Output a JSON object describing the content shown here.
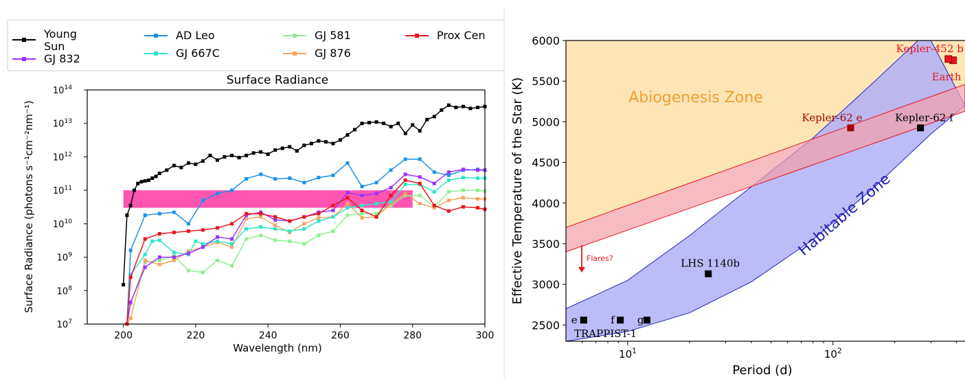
{
  "chart_data": [
    {
      "type": "line",
      "title": "Surface Radiance",
      "xlabel": "Wavelength (nm)",
      "ylabel": "Surface Radiance (photons s⁻¹cm⁻²nm⁻¹)",
      "xlim": [
        190,
        300
      ],
      "ylim_log10": [
        7,
        14
      ],
      "yscale": "log",
      "xticks": [
        "200",
        "220",
        "240",
        "260",
        "280",
        "300"
      ],
      "yticks": [
        {
          "base": "10",
          "exp": "7"
        },
        {
          "base": "10",
          "exp": "8"
        },
        {
          "base": "10",
          "exp": "9"
        },
        {
          "base": "10",
          "exp": "10"
        },
        {
          "base": "10",
          "exp": "11"
        },
        {
          "base": "10",
          "exp": "12"
        },
        {
          "base": "10",
          "exp": "13"
        },
        {
          "base": "10",
          "exp": "14"
        }
      ],
      "legend": {
        "placement": "top",
        "entries": [
          {
            "lines": [
              "Young",
              "Sun"
            ],
            "color": "#000000"
          },
          {
            "lines": [
              "GJ 832"
            ],
            "color": "#9b30ff"
          },
          {
            "lines": [
              "AD Leo"
            ],
            "color": "#1e90e8"
          },
          {
            "lines": [
              "GJ 667C"
            ],
            "color": "#2ee6c8"
          },
          {
            "lines": [
              "GJ 581"
            ],
            "color": "#90ee90"
          },
          {
            "lines": [
              "GJ 876"
            ],
            "color": "#f4a460"
          },
          {
            "lines": [
              "Prox Cen"
            ],
            "color": "#e8141c"
          }
        ]
      },
      "highlight_band": {
        "x": [
          200,
          280
        ],
        "y": [
          30000000000.0,
          100000000000.0
        ],
        "color": "#ff1493"
      },
      "series": [
        {
          "name": "Young Sun",
          "color": "#000000",
          "x": [
            200,
            201,
            202,
            203,
            204,
            205,
            206,
            207,
            208,
            209,
            210,
            212,
            214,
            216,
            218,
            220,
            222,
            224,
            226,
            228,
            230,
            232,
            234,
            236,
            238,
            240,
            242,
            244,
            246,
            248,
            250,
            252,
            254,
            256,
            258,
            260,
            262,
            264,
            266,
            268,
            270,
            272,
            274,
            276,
            278,
            280,
            282,
            284,
            286,
            288,
            290,
            292,
            294,
            296,
            298,
            300
          ],
          "y": [
            150000000.0,
            18000000000.0,
            35000000000.0,
            100000000000.0,
            160000000000.0,
            180000000000.0,
            190000000000.0,
            200000000000.0,
            230000000000.0,
            260000000000.0,
            320000000000.0,
            400000000000.0,
            550000000000.0,
            480000000000.0,
            650000000000.0,
            600000000000.0,
            750000000000.0,
            1100000000000.0,
            800000000000.0,
            1000000000000.0,
            1100000000000.0,
            950000000000.0,
            1100000000000.0,
            1300000000000.0,
            1400000000000.0,
            1200000000000.0,
            1600000000000.0,
            1800000000000.0,
            2000000000000.0,
            1500000000000.0,
            2200000000000.0,
            2500000000000.0,
            3000000000000.0,
            2800000000000.0,
            2500000000000.0,
            3200000000000.0,
            4500000000000.0,
            6500000000000.0,
            10000000000000.0,
            10500000000000.0,
            11000000000000.0,
            10000000000000.0,
            8000000000000.0,
            10000000000000.0,
            5000000000000.0,
            9000000000000.0,
            6000000000000.0,
            13000000000000.0,
            16000000000000.0,
            25000000000000.0,
            35000000000000.0,
            30000000000000.0,
            32000000000000.0,
            28000000000000.0,
            30000000000000.0,
            32000000000000.0
          ]
        },
        {
          "name": "AD Leo",
          "color": "#1e90e8",
          "x": [
            201,
            202,
            206,
            210,
            214,
            218,
            222,
            226,
            230,
            234,
            238,
            242,
            246,
            250,
            254,
            258,
            262,
            266,
            270,
            274,
            278,
            282,
            286,
            290,
            294,
            298,
            300
          ],
          "y": [
            10000000.0,
            1600000000.0,
            18000000000.0,
            20000000000.0,
            22000000000.0,
            10000000000.0,
            50000000000.0,
            80000000000.0,
            100000000000.0,
            220000000000.0,
            300000000000.0,
            220000000000.0,
            230000000000.0,
            170000000000.0,
            240000000000.0,
            280000000000.0,
            650000000000.0,
            130000000000.0,
            170000000000.0,
            400000000000.0,
            850000000000.0,
            850000000000.0,
            350000000000.0,
            280000000000.0,
            400000000000.0,
            420000000000.0,
            400000000000.0
          ]
        },
        {
          "name": "GJ 667C",
          "color": "#2ee6c8",
          "x": [
            201,
            202,
            206,
            208,
            210,
            214,
            218,
            220,
            222,
            226,
            230,
            234,
            238,
            242,
            246,
            250,
            254,
            258,
            262,
            266,
            270,
            274,
            278,
            282,
            286,
            290,
            294,
            298,
            300
          ],
          "y": [
            10000000.0,
            300000000.0,
            1200000000.0,
            3000000000.0,
            3200000000.0,
            1400000000.0,
            1200000000.0,
            3000000000.0,
            2500000000.0,
            3000000000.0,
            2500000000.0,
            7000000000.0,
            8000000000.0,
            7000000000.0,
            6000000000.0,
            7000000000.0,
            12000000000.0,
            16000000000.0,
            30000000000.0,
            35000000000.0,
            40000000000.0,
            45000000000.0,
            150000000000.0,
            150000000000.0,
            90000000000.0,
            200000000000.0,
            240000000000.0,
            230000000000.0,
            230000000000.0
          ]
        },
        {
          "name": "GJ 581",
          "color": "#90ee90",
          "x": [
            201,
            202,
            206,
            210,
            214,
            218,
            222,
            226,
            230,
            234,
            238,
            242,
            246,
            250,
            254,
            258,
            262,
            266,
            270,
            274,
            278,
            282,
            286,
            290,
            294,
            298,
            300
          ],
          "y": [
            10000000.0,
            40000000.0,
            700000000.0,
            800000000.0,
            1100000000.0,
            400000000.0,
            350000000.0,
            800000000.0,
            550000000.0,
            3500000000.0,
            4500000000.0,
            3200000000.0,
            3000000000.0,
            2500000000.0,
            4500000000.0,
            6000000000.0,
            18000000000.0,
            20000000000.0,
            20000000000.0,
            35000000000.0,
            70000000000.0,
            70000000000.0,
            32000000000.0,
            90000000000.0,
            100000000000.0,
            100000000000.0,
            95000000000.0
          ]
        },
        {
          "name": "GJ 876",
          "color": "#f4a460",
          "x": [
            201,
            202,
            206,
            210,
            214,
            218,
            222,
            226,
            230,
            234,
            238,
            242,
            246,
            250,
            254,
            258,
            262,
            266,
            270,
            274,
            278,
            282,
            286,
            290,
            294,
            298,
            300
          ],
          "y": [
            10000000.0,
            15000000.0,
            800000000.0,
            600000000.0,
            800000000.0,
            1500000000.0,
            2000000000.0,
            2800000000.0,
            2000000000.0,
            14000000000.0,
            16000000000.0,
            9000000000.0,
            5500000000.0,
            10000000000.0,
            15000000000.0,
            16000000000.0,
            40000000000.0,
            15000000000.0,
            16000000000.0,
            40000000000.0,
            80000000000.0,
            40000000000.0,
            30000000000.0,
            50000000000.0,
            60000000000.0,
            55000000000.0,
            55000000000.0
          ]
        },
        {
          "name": "GJ 832",
          "color": "#9b30ff",
          "x": [
            201,
            202,
            206,
            210,
            214,
            218,
            222,
            226,
            230,
            234,
            238,
            242,
            246,
            250,
            254,
            258,
            262,
            266,
            270,
            274,
            278,
            282,
            286,
            290,
            294,
            298,
            300
          ],
          "y": [
            10000000.0,
            45000000.0,
            500000000.0,
            1000000000.0,
            1000000000.0,
            1300000000.0,
            2000000000.0,
            4000000000.0,
            3500000000.0,
            18000000000.0,
            22000000000.0,
            13000000000.0,
            12000000000.0,
            16000000000.0,
            22000000000.0,
            25000000000.0,
            85000000000.0,
            70000000000.0,
            80000000000.0,
            120000000000.0,
            300000000000.0,
            250000000000.0,
            160000000000.0,
            350000000000.0,
            420000000000.0,
            400000000000.0,
            400000000000.0
          ]
        },
        {
          "name": "Prox Cen",
          "color": "#e8141c",
          "x": [
            201,
            202,
            206,
            210,
            214,
            218,
            222,
            226,
            230,
            234,
            238,
            242,
            246,
            250,
            254,
            258,
            262,
            266,
            270,
            274,
            278,
            282,
            286,
            290,
            294,
            298,
            300
          ],
          "y": [
            10000000.0,
            250000000.0,
            3500000000.0,
            5000000000.0,
            5500000000.0,
            6000000000.0,
            6500000000.0,
            7500000000.0,
            10000000000.0,
            20000000000.0,
            20000000000.0,
            16000000000.0,
            12000000000.0,
            16000000000.0,
            20000000000.0,
            35000000000.0,
            60000000000.0,
            25000000000.0,
            16000000000.0,
            70000000000.0,
            200000000000.0,
            160000000000.0,
            35000000000.0,
            24000000000.0,
            32000000000.0,
            30000000000.0,
            27000000000.0
          ]
        }
      ]
    },
    {
      "type": "scatter",
      "xlabel": "Period (d)",
      "ylabel": "Effective Temperature of the Star (K)",
      "xscale": "log",
      "xlim": [
        5,
        440
      ],
      "ylim": [
        2300,
        6000
      ],
      "xticks": [
        {
          "base": "10",
          "exp": "1"
        },
        {
          "base": "10",
          "exp": "2"
        }
      ],
      "yticks": [
        "2500",
        "3000",
        "3500",
        "4000",
        "4500",
        "5000",
        "5500",
        "6000"
      ],
      "zones": {
        "abiogenesis": {
          "label": "Abiogenesis Zone",
          "color": "#fde5b6",
          "lower_boundary": {
            "x": [
              5,
              440
            ],
            "y": [
              3700,
              5460
            ]
          }
        },
        "red_band": {
          "color": "#f4a0a8",
          "upper": {
            "x": [
              5,
              440
            ],
            "y": [
              3700,
              5460
            ]
          },
          "lower": {
            "x": [
              5,
              440
            ],
            "y": [
              3400,
              5130
            ]
          }
        },
        "habitable": {
          "label": "Habitable Zone",
          "color": "#b0b0f8",
          "upper": {
            "x": [
              5,
              10,
              20,
              40,
              80,
              160,
              260,
              300
            ],
            "y": [
              2700,
              3050,
              3600,
              4200,
              4800,
              5500,
              6000,
              6000
            ]
          },
          "lower": {
            "x": [
              5,
              10,
              20,
              40,
              80,
              160,
              300,
              440
            ],
            "y": [
              2300,
              2420,
              2650,
              3030,
              3550,
              4200,
              4850,
              5200
            ]
          }
        }
      },
      "flares_label": "Flares?",
      "points": [
        {
          "label": "e",
          "x": 6.1,
          "y": 2560,
          "color": "#000000"
        },
        {
          "label": "f",
          "x": 9.2,
          "y": 2560,
          "color": "#000000"
        },
        {
          "label": "g",
          "x": 12.4,
          "y": 2560,
          "color": "#000000"
        },
        {
          "label": "LHS 1140b",
          "x": 24.7,
          "y": 3130,
          "color": "#000000"
        },
        {
          "label": "Kepler-62 e",
          "x": 122,
          "y": 4925,
          "color": "#a00000"
        },
        {
          "label": "Kepler-62 f",
          "x": 267,
          "y": 4925,
          "color": "#000000"
        },
        {
          "label": "Kepler-452 b",
          "x": 385,
          "y": 5757,
          "color": "#e8141c"
        },
        {
          "label": "Earth",
          "x": 365,
          "y": 5772,
          "color": "#e8141c"
        }
      ],
      "group_label": "TRAPPIST-1"
    }
  ]
}
